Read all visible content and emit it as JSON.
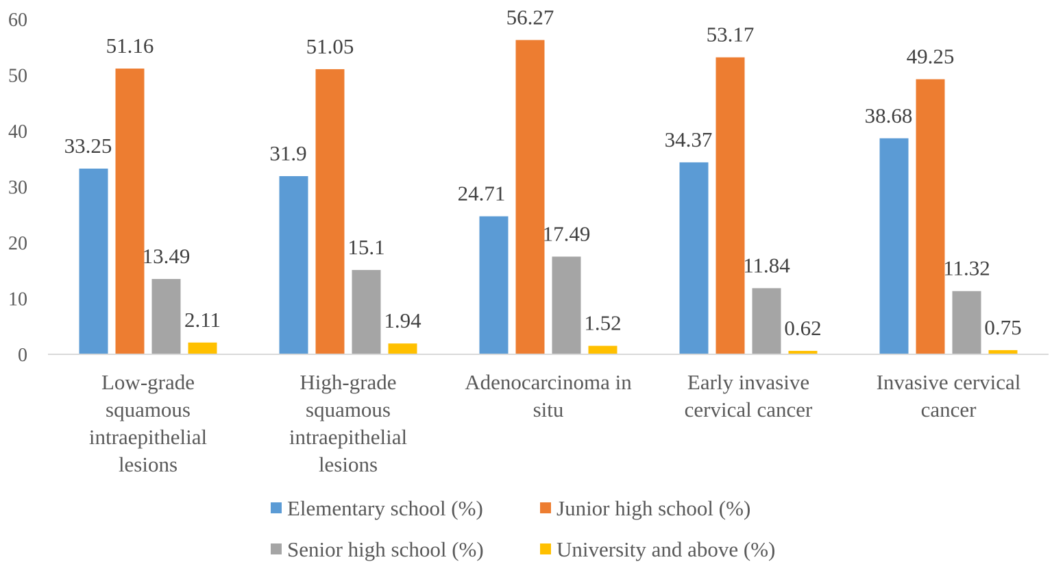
{
  "chart_data": {
    "type": "bar",
    "title": "",
    "xlabel": "",
    "ylabel": "",
    "ylim": [
      0,
      60
    ],
    "yticks": [
      0,
      10,
      20,
      30,
      40,
      50,
      60
    ],
    "grid": false,
    "legend_position": "bottom",
    "categories": [
      [
        "Low-grade",
        "squamous",
        "intraepithelial",
        "lesions"
      ],
      [
        "High-grade",
        "squamous",
        "intraepithelial",
        "lesions"
      ],
      [
        "Adenocarcinoma in",
        "situ"
      ],
      [
        "Early invasive",
        "cervical cancer"
      ],
      [
        "Invasive cervical",
        "cancer"
      ]
    ],
    "series": [
      {
        "name": "Elementary school (%)",
        "color": "#5B9BD5",
        "values": [
          33.25,
          31.9,
          24.71,
          34.37,
          38.68
        ]
      },
      {
        "name": "Junior high school (%)",
        "color": "#ED7D31",
        "values": [
          51.16,
          51.05,
          56.27,
          53.17,
          49.25
        ]
      },
      {
        "name": "Senior high school (%)",
        "color": "#A5A5A5",
        "values": [
          13.49,
          15.1,
          17.49,
          11.84,
          11.32
        ]
      },
      {
        "name": "University and above (%)",
        "color": "#FFC000",
        "values": [
          2.11,
          1.94,
          1.52,
          0.62,
          0.75
        ]
      }
    ]
  }
}
